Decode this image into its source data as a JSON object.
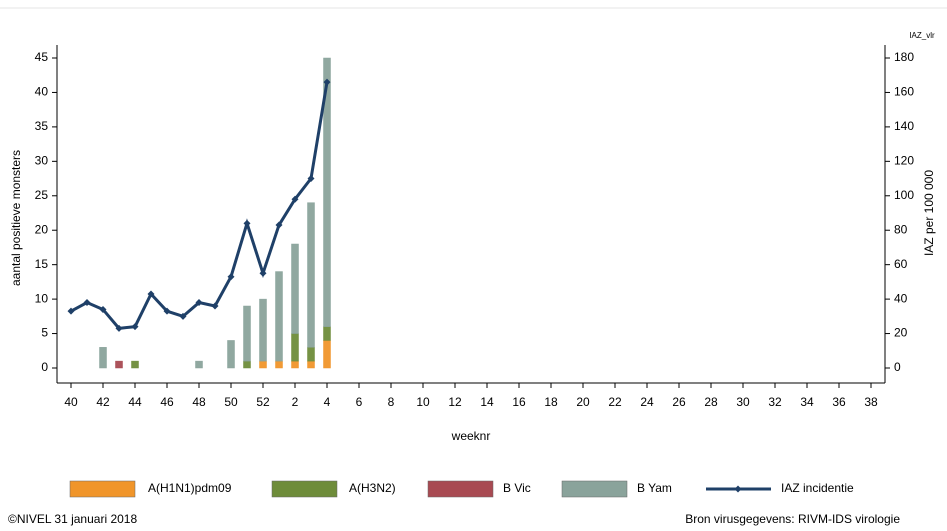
{
  "chart_data": {
    "type": "bar",
    "xlabel": "weeknr",
    "ylabel": "aantal positieve monsters",
    "y2label": "IAZ per 100 000",
    "y2label_top": "IAZ_vlr",
    "categories": [
      "40",
      null,
      "42",
      null,
      "44",
      null,
      "46",
      null,
      "48",
      null,
      "50",
      null,
      "52",
      null,
      "2",
      null,
      "4",
      null,
      "6",
      null,
      "8",
      null,
      "10",
      null,
      "12",
      null,
      "14",
      null,
      "16",
      null,
      "18",
      null,
      "20",
      null,
      "22",
      null,
      "24",
      null,
      "26",
      null,
      "28",
      null,
      "30",
      null,
      "32",
      null,
      "34",
      null,
      "36",
      null,
      "38"
    ],
    "ylim": [
      0,
      45
    ],
    "yticks": [
      0,
      5,
      10,
      15,
      20,
      25,
      30,
      35,
      40,
      45
    ],
    "y2lim": [
      0,
      180
    ],
    "y2ticks": [
      0,
      20,
      40,
      60,
      80,
      100,
      120,
      140,
      160,
      180
    ],
    "stacked": true,
    "series": [
      {
        "name": "A(H1N1)pdm09",
        "color": "#f0952a",
        "values": [
          0,
          0,
          0,
          0,
          0,
          0,
          0,
          0,
          0,
          0,
          0,
          0,
          1,
          1,
          1,
          1,
          4,
          null,
          null,
          null,
          null,
          null,
          null,
          null,
          null,
          null,
          null,
          null,
          null,
          null,
          null,
          null,
          null,
          null,
          null,
          null,
          null,
          null,
          null,
          null,
          null,
          null,
          null,
          null,
          null,
          null,
          null,
          null,
          null,
          null,
          null
        ]
      },
      {
        "name": "A(H3N2)",
        "color": "#6e8c3a",
        "values": [
          0,
          0,
          0,
          0,
          1,
          0,
          0,
          0,
          0,
          0,
          0,
          1,
          0,
          0,
          4,
          2,
          2,
          null,
          null,
          null,
          null,
          null,
          null,
          null,
          null,
          null,
          null,
          null,
          null,
          null,
          null,
          null,
          null,
          null,
          null,
          null,
          null,
          null,
          null,
          null,
          null,
          null,
          null,
          null,
          null,
          null,
          null,
          null,
          null,
          null,
          null
        ]
      },
      {
        "name": "B Vic",
        "color": "#a84a52",
        "values": [
          0,
          0,
          0,
          1,
          0,
          0,
          0,
          0,
          0,
          0,
          0,
          0,
          0,
          0,
          0,
          0,
          0,
          null,
          null,
          null,
          null,
          null,
          null,
          null,
          null,
          null,
          null,
          null,
          null,
          null,
          null,
          null,
          null,
          null,
          null,
          null,
          null,
          null,
          null,
          null,
          null,
          null,
          null,
          null,
          null,
          null,
          null,
          null,
          null,
          null,
          null
        ]
      },
      {
        "name": "B Yam",
        "color": "#8aa39b",
        "values": [
          0,
          0,
          3,
          0,
          0,
          0,
          0,
          0,
          1,
          0,
          4,
          8,
          9,
          13,
          13,
          21,
          39,
          null,
          null,
          null,
          null,
          null,
          null,
          null,
          null,
          null,
          null,
          null,
          null,
          null,
          null,
          null,
          null,
          null,
          null,
          null,
          null,
          null,
          null,
          null,
          null,
          null,
          null,
          null,
          null,
          null,
          null,
          null,
          null,
          null,
          null
        ]
      },
      {
        "name": "IAZ incidentie",
        "color": "#1f4068",
        "type": "line",
        "axis": "y2",
        "values": [
          33,
          38,
          34,
          23,
          24,
          43,
          33,
          30,
          38,
          36,
          53,
          84,
          55,
          83,
          98,
          110,
          166,
          null,
          null,
          null,
          null,
          null,
          null,
          null,
          null,
          null,
          null,
          null,
          null,
          null,
          null,
          null,
          null,
          null,
          null,
          null,
          null,
          null,
          null,
          null,
          null,
          null,
          null,
          null,
          null,
          null,
          null,
          null,
          null,
          null,
          null
        ]
      }
    ],
    "footer_left": "©NIVEL 31 januari 2018",
    "footer_right": "Bron virusgegevens: RIVM-IDS virologie"
  }
}
